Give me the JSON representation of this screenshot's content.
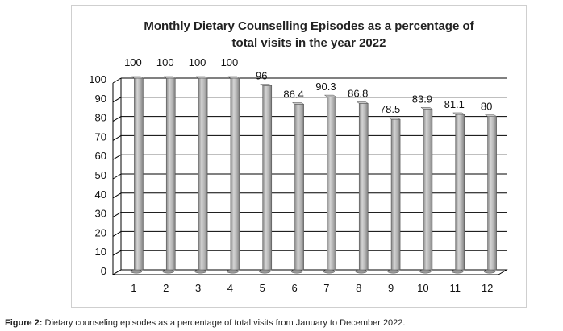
{
  "caption": {
    "label": "Figure 2:",
    "text": " Dietary counseling episodes as a percentage of total visits from January to December 2022."
  },
  "chart_data": {
    "type": "bar",
    "title_lines": [
      "Monthly Dietary Counselling Episodes as a percentage of",
      "total visits in the year 2022"
    ],
    "categories": [
      "1",
      "2",
      "3",
      "4",
      "5",
      "6",
      "7",
      "8",
      "9",
      "10",
      "11",
      "12"
    ],
    "values": [
      100,
      100,
      100,
      100,
      96,
      86.4,
      90.3,
      86.8,
      78.5,
      83.9,
      81.1,
      80
    ],
    "data_labels": [
      "100",
      "100",
      "100",
      "100",
      "96",
      "86.4",
      "90.3",
      "86.8",
      "78.5",
      "83.9",
      "81.1",
      "80"
    ],
    "y_ticks": [
      "0",
      "10",
      "20",
      "30",
      "40",
      "50",
      "60",
      "70",
      "80",
      "90",
      "100"
    ],
    "ylim": [
      0,
      100
    ],
    "grid": true,
    "legend": "none",
    "bar_color": "#a6a6a6"
  }
}
